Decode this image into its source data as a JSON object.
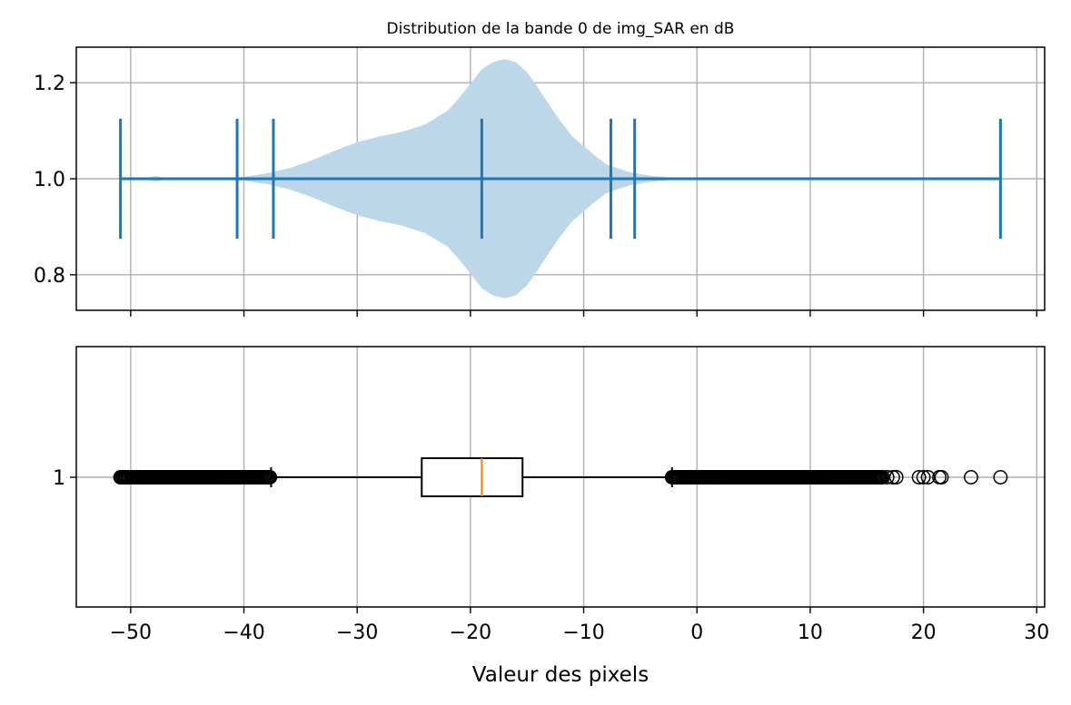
{
  "chart_data": [
    {
      "type": "violin",
      "title": "Distribution de la bande 0 de img_SAR en dB",
      "xlim": [
        -54.8,
        30.7
      ],
      "ylim": [
        0.726,
        1.274
      ],
      "x_ticks": [
        -50,
        -40,
        -30,
        -20,
        -10,
        0,
        10,
        20,
        30
      ],
      "y_ticks": [
        0.8,
        1.0,
        1.2
      ],
      "y_tick_labels": [
        "0.8",
        "1.0",
        "1.2"
      ],
      "grid": true,
      "position": 1.0,
      "fill_color": "#bcd6ea",
      "line_color": "#1f77b4",
      "markers": [
        -50.9,
        -40.6,
        -37.4,
        -19.0,
        -7.6,
        -5.5,
        26.8
      ],
      "min": -50.9,
      "max": 26.8,
      "median": -19.0,
      "density_half_width": {
        "x": [
          -50.9,
          -48.5,
          -47.8,
          -47.0,
          -45.0,
          -42.0,
          -40.0,
          -38.0,
          -36.0,
          -34.0,
          -32.0,
          -30.0,
          -28.0,
          -26.0,
          -24.0,
          -22.0,
          -21.0,
          -20.0,
          -19.0,
          -18.0,
          -17.0,
          -16.0,
          -15.0,
          -14.0,
          -13.0,
          -12.0,
          -11.0,
          -10.0,
          -9.0,
          -8.0,
          -6.0,
          -4.0,
          -2.0,
          0.0,
          10.0,
          26.8
        ],
        "y": [
          0.0,
          0.002,
          0.006,
          0.002,
          0.001,
          0.002,
          0.004,
          0.011,
          0.022,
          0.038,
          0.058,
          0.076,
          0.088,
          0.098,
          0.113,
          0.142,
          0.168,
          0.198,
          0.228,
          0.243,
          0.249,
          0.243,
          0.222,
          0.188,
          0.152,
          0.118,
          0.088,
          0.068,
          0.048,
          0.03,
          0.014,
          0.006,
          0.002,
          0.001,
          0.0,
          0.0
        ]
      }
    },
    {
      "type": "box",
      "xlabel": "Valeur des pixels",
      "xlim": [
        -54.8,
        30.7
      ],
      "x_ticks": [
        -50,
        -40,
        -30,
        -20,
        -10,
        0,
        10,
        20,
        30
      ],
      "x_tick_labels": [
        "−50",
        "−40",
        "−30",
        "−20",
        "−10",
        "0",
        "10",
        "20",
        "30"
      ],
      "y_ticks": [
        1
      ],
      "y_tick_labels": [
        "1"
      ],
      "grid": true,
      "q1": -24.3,
      "median": -19.0,
      "q3": -15.4,
      "whisker_low": -37.6,
      "whisker_high": -2.2,
      "median_color": "#ff7f0e",
      "outliers_low_range": [
        -50.9,
        -37.6
      ],
      "outliers_high_range": [
        -2.2,
        16.5
      ],
      "outliers": [
        -50.9,
        -50.5,
        -50.2,
        -49.9,
        -49.6,
        -49.4,
        16.8,
        17.3,
        17.6,
        19.6,
        20.0,
        20.4,
        21.4,
        21.6,
        24.2,
        26.8
      ]
    }
  ]
}
